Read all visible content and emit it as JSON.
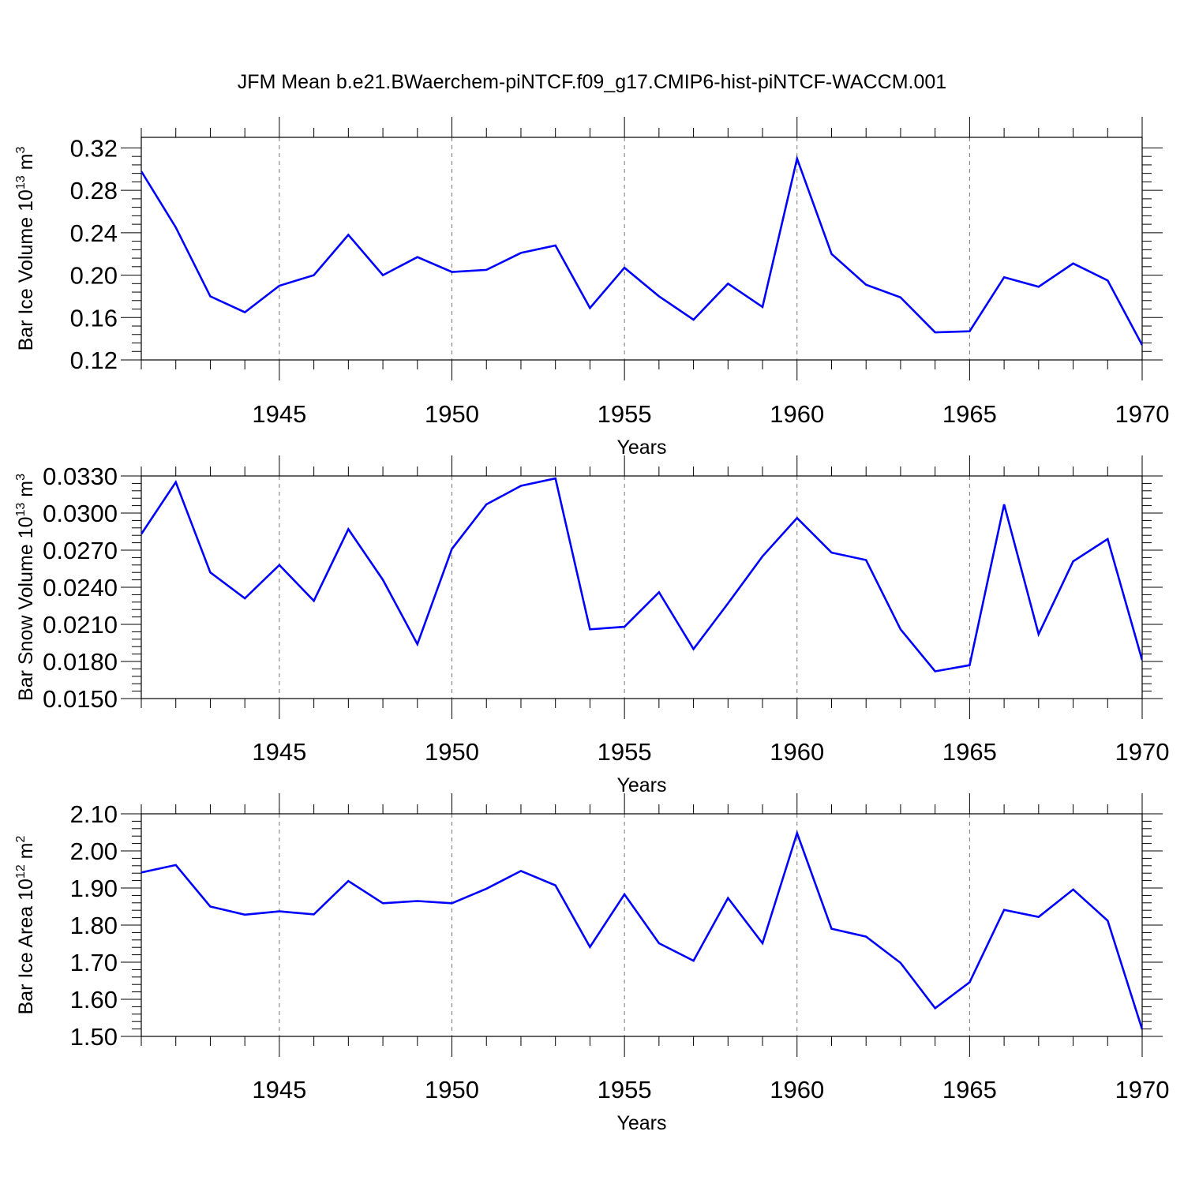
{
  "figure": {
    "title": "JFM Mean b.e21.BWaerchem-piNTCF.f09_g17.CMIP6-hist-piNTCF-WACCM.001"
  },
  "colors": {
    "line": "#0000ff",
    "axis": "#000000",
    "grid": "#777777"
  },
  "chart_data": [
    {
      "type": "line",
      "xlabel": "Years",
      "ylabel": "Bar Ice Volume 10¹³ m³",
      "ylabel_parts": {
        "base": "Bar Ice Volume 10",
        "sup1": "13",
        "mid": " m",
        "sup2": "3"
      },
      "xlim": [
        1941,
        1970
      ],
      "ylim": [
        0.12,
        0.33
      ],
      "xticks": [
        1945,
        1950,
        1955,
        1960,
        1965,
        1970
      ],
      "yticks": [
        0.12,
        0.16,
        0.2,
        0.24,
        0.28,
        0.32
      ],
      "ytick_labels": [
        "0.12",
        "0.16",
        "0.20",
        "0.24",
        "0.28",
        "0.32"
      ],
      "grid": "dashed vertical lines at labeled years",
      "x": [
        1941,
        1942,
        1943,
        1944,
        1945,
        1946,
        1947,
        1948,
        1949,
        1950,
        1951,
        1952,
        1953,
        1954,
        1955,
        1956,
        1957,
        1958,
        1959,
        1960,
        1961,
        1962,
        1963,
        1964,
        1965,
        1966,
        1967,
        1968,
        1969,
        1970
      ],
      "series": [
        {
          "values": [
            0.298,
            0.245,
            0.18,
            0.165,
            0.19,
            0.2,
            0.238,
            0.2,
            0.217,
            0.203,
            0.205,
            0.221,
            0.228,
            0.169,
            0.207,
            0.18,
            0.158,
            0.192,
            0.17,
            0.31,
            0.22,
            0.191,
            0.179,
            0.146,
            0.147,
            0.198,
            0.189,
            0.211,
            0.195,
            0.134
          ]
        }
      ]
    },
    {
      "type": "line",
      "xlabel": "Years",
      "ylabel": "Bar Snow Volume 10¹³ m³",
      "ylabel_parts": {
        "base": "Bar Snow Volume 10",
        "sup1": "13",
        "mid": " m",
        "sup2": "3"
      },
      "xlim": [
        1941,
        1970
      ],
      "ylim": [
        0.015,
        0.033
      ],
      "xticks": [
        1945,
        1950,
        1955,
        1960,
        1965,
        1970
      ],
      "yticks": [
        0.015,
        0.018,
        0.021,
        0.024,
        0.027,
        0.03,
        0.033
      ],
      "ytick_labels": [
        "0.0150",
        "0.0180",
        "0.0210",
        "0.0240",
        "0.0270",
        "0.0300",
        "0.0330"
      ],
      "grid": "dashed vertical lines at labeled years",
      "x": [
        1941,
        1942,
        1943,
        1944,
        1945,
        1946,
        1947,
        1948,
        1949,
        1950,
        1951,
        1952,
        1953,
        1954,
        1955,
        1956,
        1957,
        1958,
        1959,
        1960,
        1961,
        1962,
        1963,
        1964,
        1965,
        1966,
        1967,
        1968,
        1969,
        1970
      ],
      "series": [
        {
          "values": [
            0.0283,
            0.0325,
            0.0252,
            0.0231,
            0.0258,
            0.0229,
            0.0287,
            0.0246,
            0.0194,
            0.0271,
            0.0307,
            0.0322,
            0.0328,
            0.0206,
            0.0208,
            0.0236,
            0.019,
            0.0227,
            0.0265,
            0.0296,
            0.0268,
            0.0262,
            0.0206,
            0.0172,
            0.0177,
            0.0307,
            0.0202,
            0.0261,
            0.0279,
            0.0181
          ]
        }
      ]
    },
    {
      "type": "line",
      "xlabel": "Years",
      "ylabel": "Bar Ice Area 10¹² m²",
      "ylabel_parts": {
        "base": "Bar Ice Area 10",
        "sup1": "12",
        "mid": " m",
        "sup2": "2"
      },
      "xlim": [
        1941,
        1970
      ],
      "ylim": [
        1.5,
        2.1
      ],
      "xticks": [
        1945,
        1950,
        1955,
        1960,
        1965,
        1970
      ],
      "yticks": [
        1.5,
        1.6,
        1.7,
        1.8,
        1.9,
        2.0,
        2.1
      ],
      "ytick_labels": [
        "1.50",
        "1.60",
        "1.70",
        "1.80",
        "1.90",
        "2.00",
        "2.10"
      ],
      "grid": "dashed vertical lines at labeled years",
      "x": [
        1941,
        1942,
        1943,
        1944,
        1945,
        1946,
        1947,
        1948,
        1949,
        1950,
        1951,
        1952,
        1953,
        1954,
        1955,
        1956,
        1957,
        1958,
        1959,
        1960,
        1961,
        1962,
        1963,
        1964,
        1965,
        1966,
        1967,
        1968,
        1969,
        1970
      ],
      "series": [
        {
          "values": [
            1.942,
            1.962,
            1.85,
            1.828,
            1.837,
            1.829,
            1.919,
            1.859,
            1.865,
            1.859,
            1.898,
            1.946,
            1.907,
            1.741,
            1.883,
            1.751,
            1.704,
            1.873,
            1.751,
            2.048,
            1.79,
            1.769,
            1.698,
            1.576,
            1.646,
            1.841,
            1.822,
            1.896,
            1.812,
            1.519
          ]
        }
      ]
    }
  ]
}
